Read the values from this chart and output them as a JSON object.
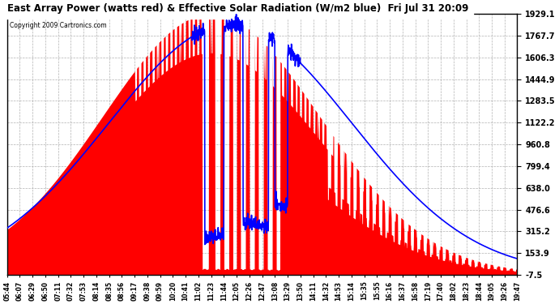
{
  "title": "East Array Power (watts red) & Effective Solar Radiation (W/m2 blue)  Fri Jul 31 20:09",
  "copyright": "Copyright 2009 Cartronics.com",
  "ylim": [
    -7.5,
    1929.1
  ],
  "yticks": [
    1929.1,
    1767.7,
    1606.3,
    1444.9,
    1283.5,
    1122.2,
    960.8,
    799.4,
    638.0,
    476.6,
    315.2,
    153.9,
    -7.5
  ],
  "xtick_labels": [
    "05:44",
    "06:07",
    "06:29",
    "06:50",
    "07:11",
    "07:32",
    "07:53",
    "08:14",
    "08:35",
    "08:56",
    "09:17",
    "09:38",
    "09:59",
    "10:20",
    "10:41",
    "11:02",
    "11:23",
    "11:44",
    "12:05",
    "12:26",
    "12:47",
    "13:08",
    "13:29",
    "13:50",
    "14:11",
    "14:32",
    "14:53",
    "15:14",
    "15:35",
    "15:55",
    "16:16",
    "16:37",
    "16:58",
    "17:19",
    "17:40",
    "18:02",
    "18:23",
    "18:44",
    "19:05",
    "19:26",
    "19:47"
  ],
  "bg_color": "#ffffff",
  "plot_bg_color": "#ffffff",
  "red_color": "#ff0000",
  "blue_color": "#0000ff",
  "grid_color": "#aaaaaa",
  "title_color": "#000000",
  "copyright_color": "#000000",
  "n_samples": 2000
}
